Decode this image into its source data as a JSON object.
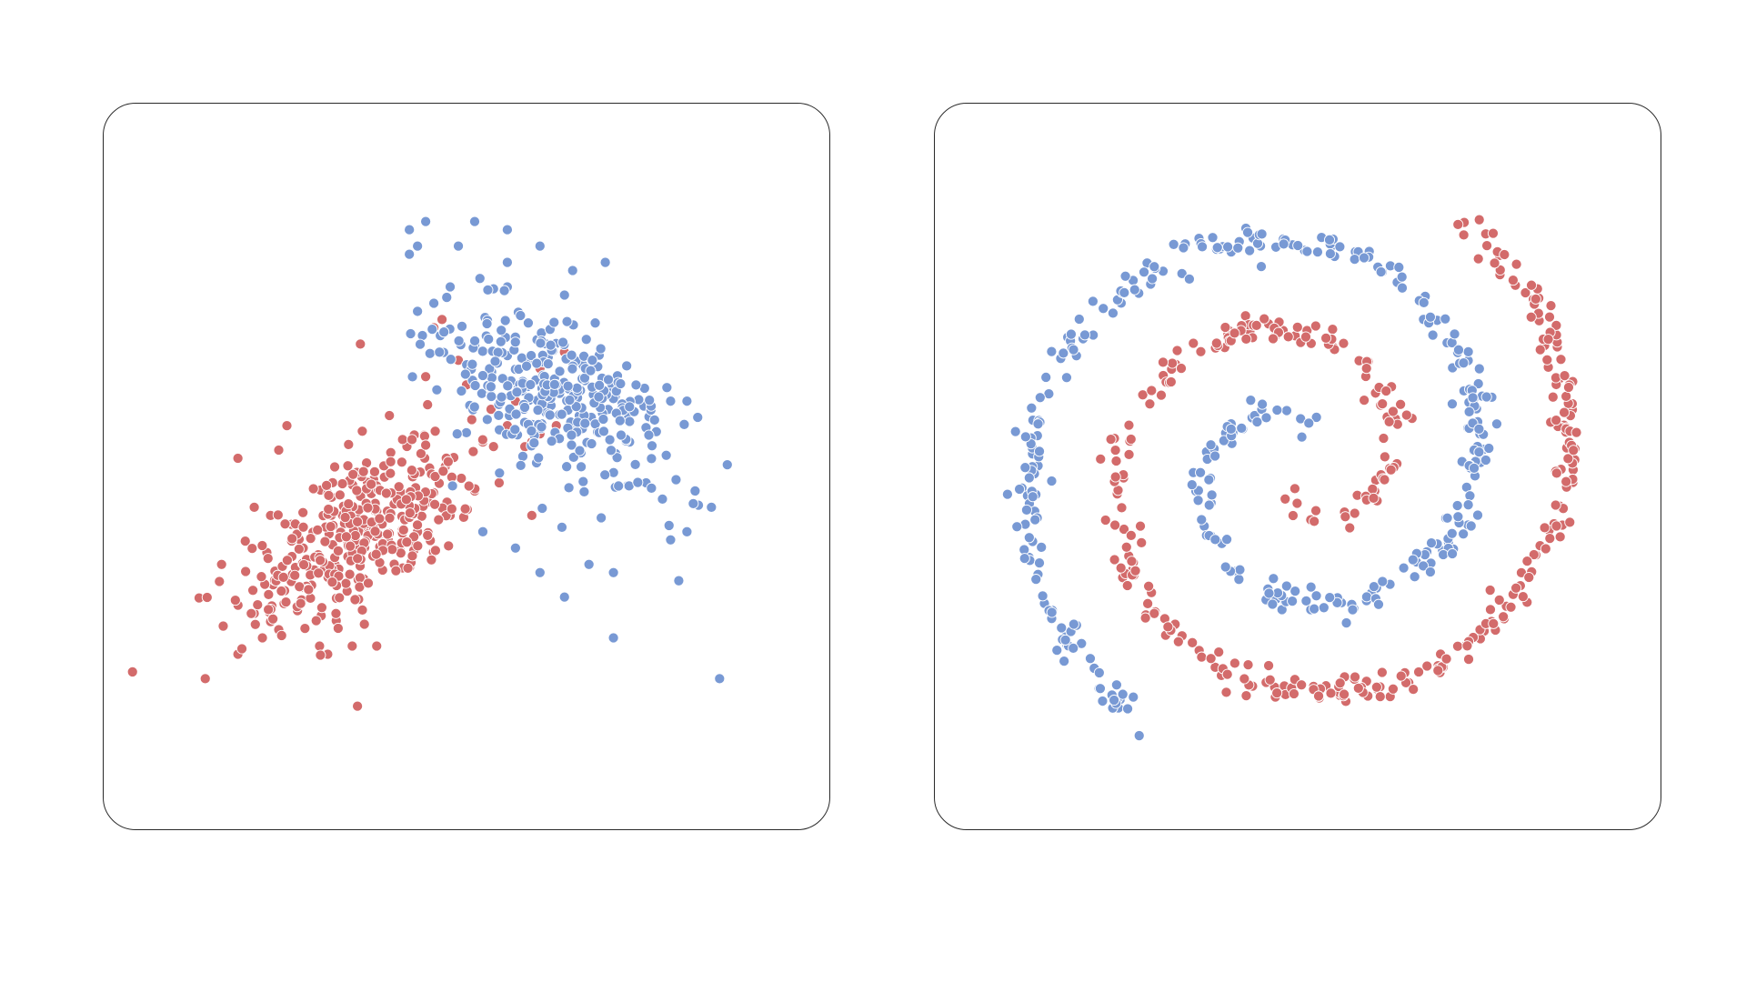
{
  "colors": {
    "class_a": "#d36b6b",
    "class_b": "#7899d4"
  },
  "chart_data": [
    {
      "type": "scatter",
      "xlim": [
        -4,
        4
      ],
      "ylim": [
        -4,
        4
      ],
      "axes_visible": false,
      "grid": false,
      "series": [
        {
          "color": "#d36b6b",
          "points": [
            [
              -3.2,
              -2.6
            ],
            [
              -2.8,
              -2.3
            ],
            [
              -2.5,
              -2.1
            ],
            [
              -3.0,
              -1.2
            ],
            [
              -2.6,
              -1.8
            ],
            [
              -2.4,
              -1.9
            ],
            [
              -2.3,
              -2.0
            ],
            [
              -1.7,
              -2.3
            ],
            [
              -1.8,
              -2.2
            ],
            [
              -1.4,
              -2.2
            ],
            [
              -1.1,
              -2.2
            ],
            [
              -2.8,
              0.1
            ],
            [
              -2.3,
              0.2
            ],
            [
              -2.2,
              0.5
            ],
            [
              -1.3,
              1.5
            ],
            [
              -0.4,
              1.7
            ],
            [
              -0.1,
              1.3
            ],
            [
              0.0,
              1.0
            ],
            [
              -0.3,
              1.8
            ],
            [
              -0.5,
              1.1
            ],
            [
              0.3,
              0.7
            ],
            [
              0.5,
              0.5
            ],
            [
              0.6,
              0.8
            ],
            [
              0.8,
              0.3
            ],
            [
              0.9,
              0.4
            ],
            [
              0.2,
              0.3
            ],
            [
              -2.6,
              -0.5
            ],
            [
              -2.4,
              -0.6
            ],
            [
              -2.0,
              -1.0
            ],
            [
              -0.2,
              -0.6
            ],
            [
              -0.6,
              -0.8
            ],
            [
              0.1,
              -0.3
            ],
            [
              0.4,
              -0.2
            ],
            [
              0.8,
              -0.6
            ],
            [
              1.2,
              1.4
            ],
            [
              1.3,
              0.8
            ],
            [
              1.1,
              0.5
            ],
            [
              0.9,
              1.2
            ]
          ],
          "cluster": {
            "cx": -1.3,
            "cy": -0.8,
            "sx": 0.6,
            "sy": 0.55,
            "rot_deg": 35,
            "n": 360
          }
        },
        {
          "color": "#7899d4",
          "points": [
            [
              -0.7,
              2.9
            ],
            [
              -0.5,
              3.0
            ],
            [
              -0.6,
              2.7
            ],
            [
              -0.7,
              2.6
            ],
            [
              0.1,
              3.0
            ],
            [
              0.5,
              2.9
            ],
            [
              -0.1,
              2.7
            ],
            [
              0.5,
              2.5
            ],
            [
              0.9,
              2.7
            ],
            [
              1.3,
              2.4
            ],
            [
              1.7,
              2.5
            ],
            [
              1.2,
              2.1
            ],
            [
              0.5,
              2.2
            ],
            [
              -0.2,
              2.2
            ],
            [
              -0.4,
              2.0
            ],
            [
              -0.6,
              1.9
            ],
            [
              2.5,
              0.8
            ],
            [
              2.7,
              0.8
            ],
            [
              3.0,
              -0.5
            ],
            [
              2.8,
              -0.3
            ],
            [
              2.7,
              -0.8
            ],
            [
              2.5,
              -0.9
            ],
            [
              2.4,
              -0.4
            ],
            [
              2.2,
              -0.2
            ],
            [
              1.8,
              -1.3
            ],
            [
              1.2,
              -1.6
            ],
            [
              0.6,
              -1.0
            ],
            [
              0.2,
              -0.8
            ],
            [
              1.8,
              -2.1
            ],
            [
              3.1,
              -2.6
            ],
            [
              2.6,
              -1.4
            ],
            [
              0.9,
              -1.3
            ],
            [
              1.5,
              -1.2
            ]
          ],
          "cluster": {
            "cx": 1.05,
            "cy": 0.85,
            "sx": 0.55,
            "sy": 0.55,
            "rot_deg": -35,
            "n": 330
          }
        }
      ]
    },
    {
      "type": "scatter",
      "xlim": [
        -4,
        4
      ],
      "ylim": [
        -4,
        4
      ],
      "axes_visible": false,
      "grid": false,
      "series": [
        {
          "color": "#d36b6b",
          "spiral": {
            "theta_start": 0.35,
            "theta_end": 10.4,
            "r_per_rad": 0.35,
            "noise": 0.09,
            "n": 360,
            "phase": 3.14159
          }
        },
        {
          "color": "#7899d4",
          "spiral": {
            "theta_start": 0.35,
            "theta_end": 10.4,
            "r_per_rad": 0.35,
            "noise": 0.09,
            "n": 360,
            "phase": 0
          }
        }
      ]
    }
  ]
}
